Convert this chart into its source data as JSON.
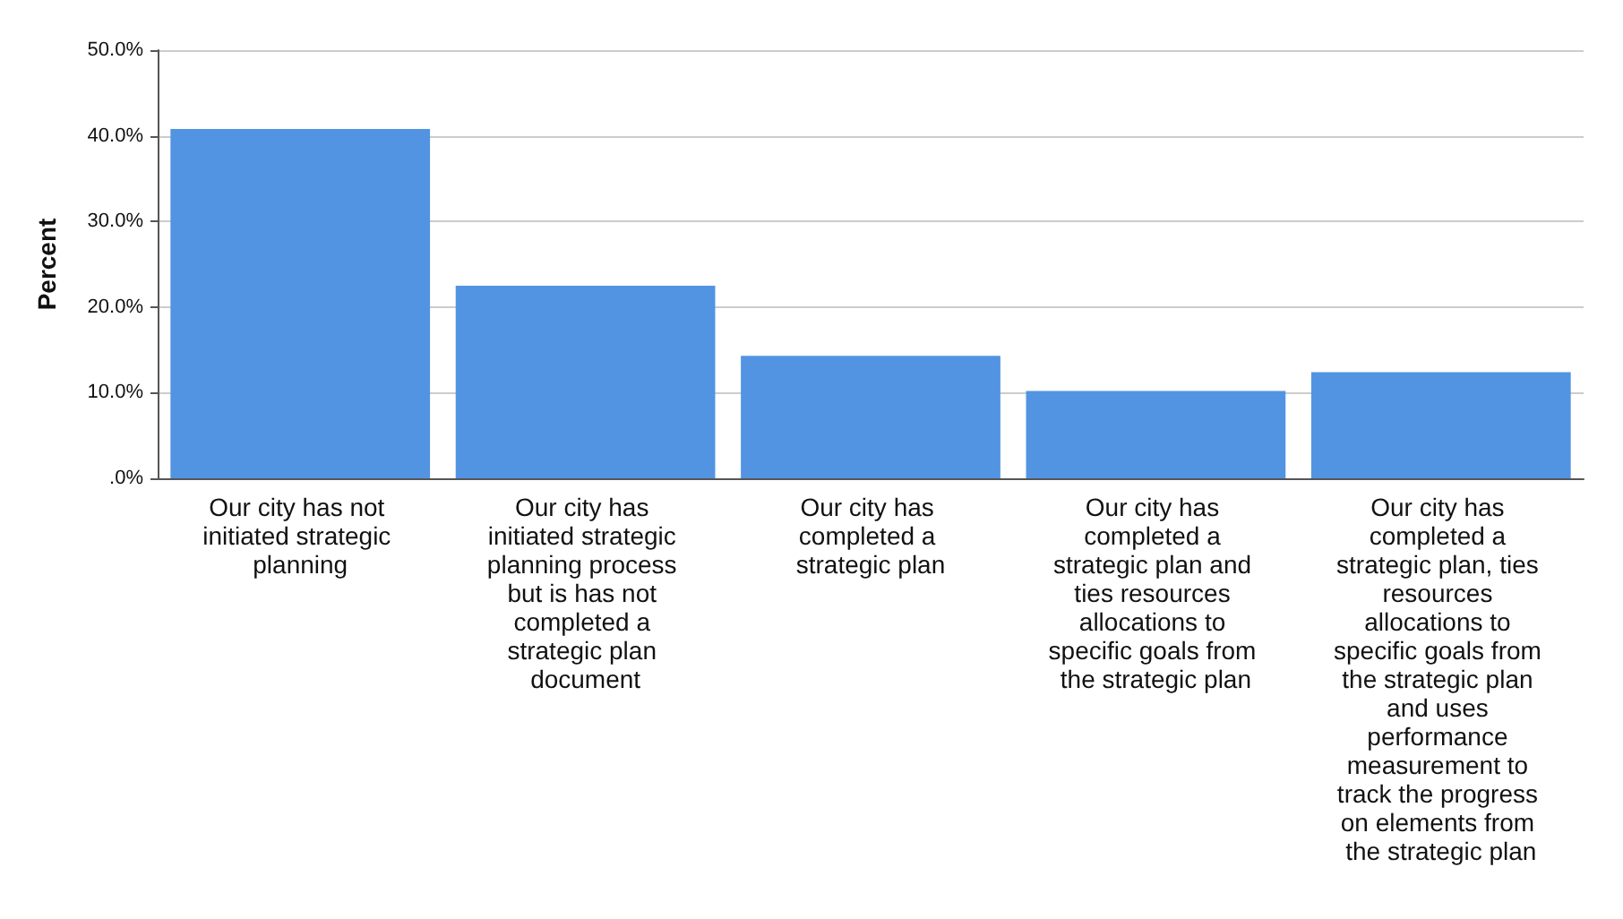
{
  "chart_data": {
    "type": "bar",
    "ylabel": "Percent",
    "categories": [
      "Our city has not initiated strategic planning",
      "Our city has initiated strategic planning process but is has not completed a strategic plan document",
      "Our city has completed a strategic plan",
      "Our city has completed a strategic plan and ties resources allocations to specific goals from the strategic plan",
      "Our city has completed a strategic plan, ties resources allocations to specific goals from the strategic plan and uses performance measurement to track the progress on elements from the strategic plan"
    ],
    "values": [
      40.8,
      22.5,
      14.3,
      10.2,
      12.4
    ],
    "color": "#5294e2",
    "ylim": [
      0,
      50
    ],
    "yticks": [
      {
        "value": 0,
        "label": ".0%"
      },
      {
        "value": 10,
        "label": "10.0%"
      },
      {
        "value": 20,
        "label": "20.0%"
      },
      {
        "value": 30,
        "label": "30.0%"
      },
      {
        "value": 40,
        "label": "40.0%"
      },
      {
        "value": 50,
        "label": "50.0%"
      }
    ],
    "grid": "y"
  }
}
